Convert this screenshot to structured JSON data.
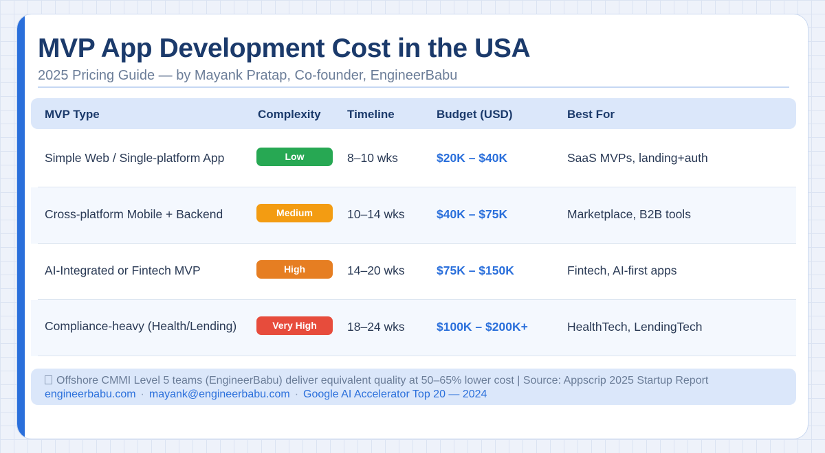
{
  "header": {
    "title": "MVP App Development Cost in the USA",
    "subtitle": "2025 Pricing Guide — by Mayank Pratap, Co-founder, EngineerBabu"
  },
  "table": {
    "columns": [
      "MVP Type",
      "Complexity",
      "Timeline",
      "Budget (USD)",
      "Best For"
    ],
    "rows": [
      {
        "type": "Simple Web / Single-platform App",
        "complexity": "Low",
        "complexity_color": "#27a853",
        "timeline": "8–10 wks",
        "budget": "$20K – $40K",
        "best_for": "SaaS MVPs, landing+auth"
      },
      {
        "type": "Cross-platform Mobile + Backend",
        "complexity": "Medium",
        "complexity_color": "#f39c12",
        "timeline": "10–14 wks",
        "budget": "$40K – $75K",
        "best_for": "Marketplace, B2B tools"
      },
      {
        "type": "AI-Integrated or Fintech MVP",
        "complexity": "High",
        "complexity_color": "#e67e22",
        "timeline": "14–20 wks",
        "budget": "$75K – $150K",
        "best_for": "Fintech, AI-first apps"
      },
      {
        "type": "Compliance-heavy (Health/Lending)",
        "complexity": "Very High",
        "complexity_color": "#e74c3c",
        "timeline": "18–24 wks",
        "budget": "$100K – $200K+",
        "best_for": "HealthTech, LendingTech"
      }
    ]
  },
  "footer": {
    "note_icon": "info-icon",
    "note": "Offshore CMMI Level 5 teams (EngineerBabu) deliver equivalent quality at 50–65% lower cost  |  Source: Appscrip 2025 Startup Report",
    "links": [
      "engineerbabu.com",
      "mayank@engineerbabu.com",
      "Google AI Accelerator Top 20 — 2024"
    ],
    "link_separator": "·"
  },
  "colors": {
    "accent": "#2a6fdb",
    "title": "#1b3a6b",
    "header_bg": "#dbe7fa"
  }
}
